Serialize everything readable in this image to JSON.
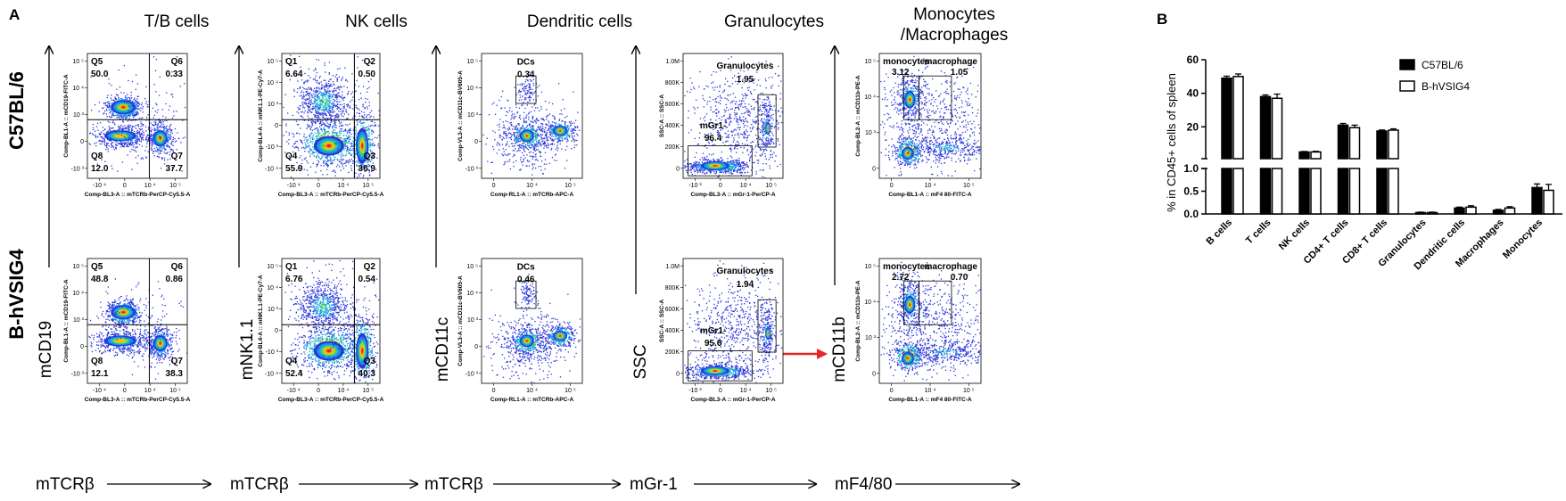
{
  "figure": {
    "panel_a": "A",
    "panel_b": "B",
    "columns": [
      {
        "title": "T/B cells",
        "x_axis_name": "mTCRβ",
        "y_axis_name": "mCD19",
        "x_param": "Comp-BL3-A :: mTCRb-PerCP-Cy5.5-A",
        "y_param": "Comp-BL1-A :: mCD19-FITC-A",
        "x_ticks": [
          "-10 ⁴",
          "0",
          "10 ⁴",
          "10 ⁵"
        ],
        "y_ticks": [
          "10 ⁵",
          "10 ⁴",
          "10 ³",
          "0",
          "-10 ³"
        ]
      },
      {
        "title": "NK cells",
        "x_axis_name": "mTCRβ",
        "y_axis_name": "mNK1.1",
        "x_param": "Comp-BL3-A :: mTCRb-PerCP-Cy5.5-A",
        "y_param": "Comp-BL4-A :: mNK1.1-PE-Cy7-A",
        "x_ticks": [
          "-10 ⁴",
          "0",
          "10 ⁴",
          "10 ⁵"
        ],
        "y_ticks": [
          "10 ⁵",
          "10 ⁴",
          "10 ³",
          "0",
          "-10 ³",
          "-10 ⁴"
        ]
      },
      {
        "title": "Dendritic cells",
        "x_axis_name": "mTCRβ",
        "y_axis_name": "mCD11c",
        "x_param": "Comp-RL1-A :: mTCRb-APC-A",
        "y_param": "Comp-VL3-A :: mCD11c-BV605-A",
        "x_ticks": [
          "0",
          "10 ⁴",
          "10 ⁵"
        ],
        "y_ticks": [
          "10 ⁵",
          "10 ⁴",
          "10 ³",
          "0",
          "-10 ³"
        ]
      },
      {
        "title": "Granulocytes",
        "x_axis_name": "mGr-1",
        "y_axis_name": "SSC",
        "x_param": "Comp-BL3-A :: mGr-1-PerCP-A",
        "y_param": "SSC-A :: SSC-A",
        "x_ticks": [
          "-10 ³",
          "0",
          "10 ⁴",
          "10 ⁵"
        ],
        "y_ticks": [
          "1.0M",
          "800K",
          "600K",
          "400K",
          "200K",
          "0"
        ]
      },
      {
        "title": "Monocytes\n/Macrophages",
        "title_line1": "Monocytes",
        "title_line2": "/Macrophages",
        "x_axis_name": "mF4/80",
        "y_axis_name": "mCD11b",
        "x_param": "Comp-BL1-A :: mF4 80-FITC-A",
        "y_param": "Comp-BL2-A :: mCD11b-PE-A",
        "x_ticks": [
          "0",
          "10 ⁴",
          "10 ⁵"
        ],
        "y_ticks": [
          "10 ⁵",
          "10 ⁴",
          "10 ³",
          "0"
        ]
      }
    ],
    "rows": [
      {
        "label": "C57BL/6",
        "tb": {
          "q5": "Q5",
          "v5": "50.0",
          "q6": "Q6",
          "v6": "0.33",
          "q7": "Q7",
          "v7": "37.7",
          "q8": "Q8",
          "v8": "12.0"
        },
        "nk": {
          "q1": "Q1",
          "v1": "6.64",
          "q2": "Q2",
          "v2": "0.50",
          "q3": "Q3",
          "v3": "36.9",
          "q4": "Q4",
          "v4": "55.9"
        },
        "dc": {
          "name": "DCs",
          "value": "0.34"
        },
        "gr": {
          "name": "Granulocytes",
          "value": "1.95",
          "mname": "mGr1-",
          "mvalue": "96.4"
        },
        "mm": {
          "mono": "monocytes",
          "mono_v": "3.12",
          "mac": "macrophage",
          "mac_v": "1.05"
        }
      },
      {
        "label": "B-hVSIG4",
        "tb": {
          "q5": "Q5",
          "v5": "48.8",
          "q6": "Q6",
          "v6": "0.86",
          "q7": "Q7",
          "v7": "38.3",
          "q8": "Q8",
          "v8": "12.1"
        },
        "nk": {
          "q1": "Q1",
          "v1": "6.76",
          "q2": "Q2",
          "v2": "0.54",
          "q3": "Q3",
          "v3": "40.3",
          "q4": "Q4",
          "v4": "52.4"
        },
        "dc": {
          "name": "DCs",
          "value": "0.46"
        },
        "gr": {
          "name": "Granulocytes",
          "value": "1.94",
          "mname": "mGr1-",
          "mvalue": "95.6"
        },
        "mm": {
          "mono": "monocytes",
          "mono_v": "2.72",
          "mac": "macrophage",
          "mac_v": "0.70"
        }
      }
    ]
  },
  "colors": {
    "red_arrow": "#e8262a",
    "bar_black": "#000000"
  },
  "chart_data": {
    "type": "bar",
    "ylabel": "% in CD45+ cells of spleen",
    "categories": [
      "B cells",
      "T cells",
      "NK cells",
      "CD4+ T cells",
      "CD8+ T cells",
      "Granulocytes",
      "Dendritic cells",
      "Macrophages",
      "Monocytes"
    ],
    "series": [
      {
        "name": "C57BL/6",
        "values": [
          49,
          38,
          5.0,
          21,
          17.5,
          0.03,
          0.13,
          0.08,
          0.58
        ],
        "errors": [
          1.2,
          1.0,
          0.3,
          1.0,
          0.6,
          0.01,
          0.02,
          0.02,
          0.08
        ]
      },
      {
        "name": "B-hVSIG4",
        "values": [
          50,
          37,
          5.0,
          19.5,
          18,
          0.03,
          0.15,
          0.13,
          0.52
        ],
        "errors": [
          1.5,
          2.5,
          0.4,
          1.5,
          0.8,
          0.01,
          0.03,
          0.03,
          0.13
        ]
      }
    ],
    "y_upper_range": [
      1,
      60
    ],
    "y_upper_ticks": [
      "60",
      "40",
      "20"
    ],
    "y_lower_range": [
      0,
      1.0
    ],
    "y_lower_ticks": [
      "1.0",
      "0.5",
      "0.0"
    ],
    "legend_position": "top-right",
    "grid": false
  }
}
